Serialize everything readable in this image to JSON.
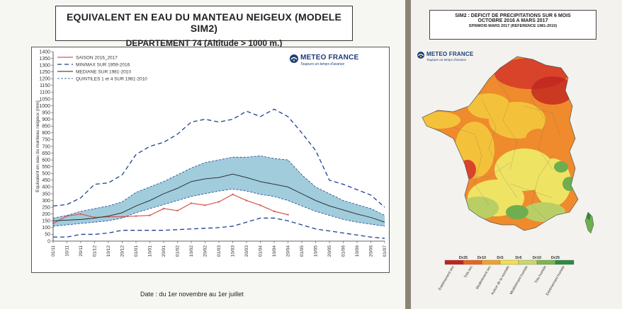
{
  "left_panel": {
    "title_line1": "EQUIVALENT EN EAU DU MANTEAU NEIGEUX (MODELE SIM2)",
    "title_line2": "DEPARTEMENT 74  (Altitude > 1000 m.)",
    "logo_name": "METEO FRANCE",
    "logo_tagline": "Toujours un temps d'avance"
  },
  "right_panel": {
    "title_line1": "SIM2 : DEFICIT DE PRECIPITATIONS SUR 6 MOIS",
    "title_line2": "OCTOBRE 2016 A MARS 2017",
    "title_line3": "SPI6MOIS MARS 2017 (REFERENCE 1981-2010)",
    "logo_name": "METEO FRANCE",
    "logo_tagline": "Toujours un temps d'avance",
    "legend": {
      "top_labels": [
        "Dr25",
        "Dr10",
        "Dr5",
        "Dr5",
        "Dr10",
        "Dr25"
      ],
      "bottom_labels": [
        "Extrêmement sec",
        "Très sec",
        "Modérément sec",
        "Autour de la normale",
        "Modérément humide",
        "Très humide",
        "Extrêmement humide"
      ],
      "colors": [
        "#c0241e",
        "#e8641e",
        "#f2a12a",
        "#f3e04a",
        "#c9d96a",
        "#7fb54c",
        "#2e8a3e"
      ]
    },
    "map_colors": {
      "very_dry": "#d8432a",
      "dry": "#ef8b2c",
      "moderately_dry": "#f4c23a",
      "normal": "#efe364",
      "moderately_wet": "#b9cf66",
      "wet": "#6fae4f"
    }
  },
  "chart_data": {
    "type": "line",
    "title": "EQUIVALENT EN EAU DU MANTEAU NEIGEUX (MODELE SIM2)",
    "subtitle": "DEPARTEMENT 74  (Altitude > 1000 m.)",
    "xlabel": "Date : du 1er novembre au 1er juillet",
    "ylabel": "Equivalent en eau du manteau neigeux (mm)",
    "ylim": [
      0,
      1400
    ],
    "yticks": [
      0,
      50,
      100,
      150,
      200,
      250,
      300,
      350,
      400,
      450,
      500,
      550,
      600,
      650,
      700,
      750,
      800,
      850,
      900,
      950,
      1000,
      1050,
      1100,
      1150,
      1200,
      1250,
      1300,
      1350,
      1400
    ],
    "x": [
      "01/11",
      "10/11",
      "20/11",
      "01/12",
      "10/12",
      "20/12",
      "01/01",
      "10/01",
      "20/01",
      "01/02",
      "10/02",
      "20/02",
      "01/03",
      "10/03",
      "20/03",
      "01/04",
      "10/04",
      "20/04",
      "01/05",
      "10/05",
      "20/05",
      "01/06",
      "10/06",
      "20/06",
      "01/07"
    ],
    "legend_position": "top-left",
    "grid": false,
    "series": [
      {
        "name": "SAISON 2016_2017",
        "style": "solid",
        "color": "#d9534f",
        "values": [
          130,
          185,
          200,
          175,
          180,
          180,
          185,
          190,
          240,
          225,
          280,
          265,
          290,
          345,
          300,
          265,
          220,
          195,
          null,
          null,
          null,
          null,
          null,
          null,
          null
        ]
      },
      {
        "name": "MIN/MAX SUR 1959-2016 (max)",
        "style": "dashed",
        "color": "#1f3f8f",
        "values": [
          260,
          270,
          320,
          420,
          430,
          490,
          640,
          700,
          730,
          790,
          880,
          900,
          880,
          900,
          960,
          920,
          975,
          920,
          800,
          670,
          450,
          420,
          380,
          340,
          250
        ]
      },
      {
        "name": "MIN/MAX SUR 1959-2016 (min)",
        "style": "dashed",
        "color": "#1f3f8f",
        "values": [
          30,
          30,
          50,
          50,
          60,
          80,
          80,
          80,
          80,
          85,
          90,
          95,
          100,
          110,
          140,
          170,
          170,
          150,
          120,
          90,
          75,
          60,
          45,
          30,
          20
        ]
      },
      {
        "name": "MEDIANE SUR 1981-2010",
        "style": "solid",
        "color": "#222222",
        "values": [
          150,
          155,
          160,
          170,
          185,
          210,
          260,
          300,
          350,
          390,
          440,
          460,
          470,
          495,
          470,
          440,
          420,
          400,
          350,
          300,
          260,
          230,
          200,
          175,
          140
        ]
      },
      {
        "name": "QUINTILES 1 et 4 SUR 1981-2010 (q4)",
        "style": "dashed",
        "color": "#1f3f8f",
        "values": [
          170,
          190,
          220,
          240,
          260,
          290,
          360,
          400,
          440,
          490,
          540,
          580,
          600,
          620,
          620,
          630,
          610,
          600,
          490,
          400,
          350,
          300,
          270,
          240,
          190
        ]
      },
      {
        "name": "QUINTILES 1 et 4 SUR 1981-2010 (q1)",
        "style": "dashed",
        "color": "#1f3f8f",
        "values": [
          110,
          120,
          130,
          140,
          150,
          170,
          210,
          240,
          270,
          300,
          330,
          350,
          370,
          385,
          370,
          345,
          330,
          300,
          260,
          220,
          190,
          160,
          140,
          125,
          110
        ]
      }
    ],
    "legend_entries": [
      "SAISON 2016_2017",
      "MIN/MAX SUR 1959-2016",
      "MEDIANE SUR 1981-2010",
      "QUINTILES 1 et 4 SUR 1981-2010"
    ]
  }
}
